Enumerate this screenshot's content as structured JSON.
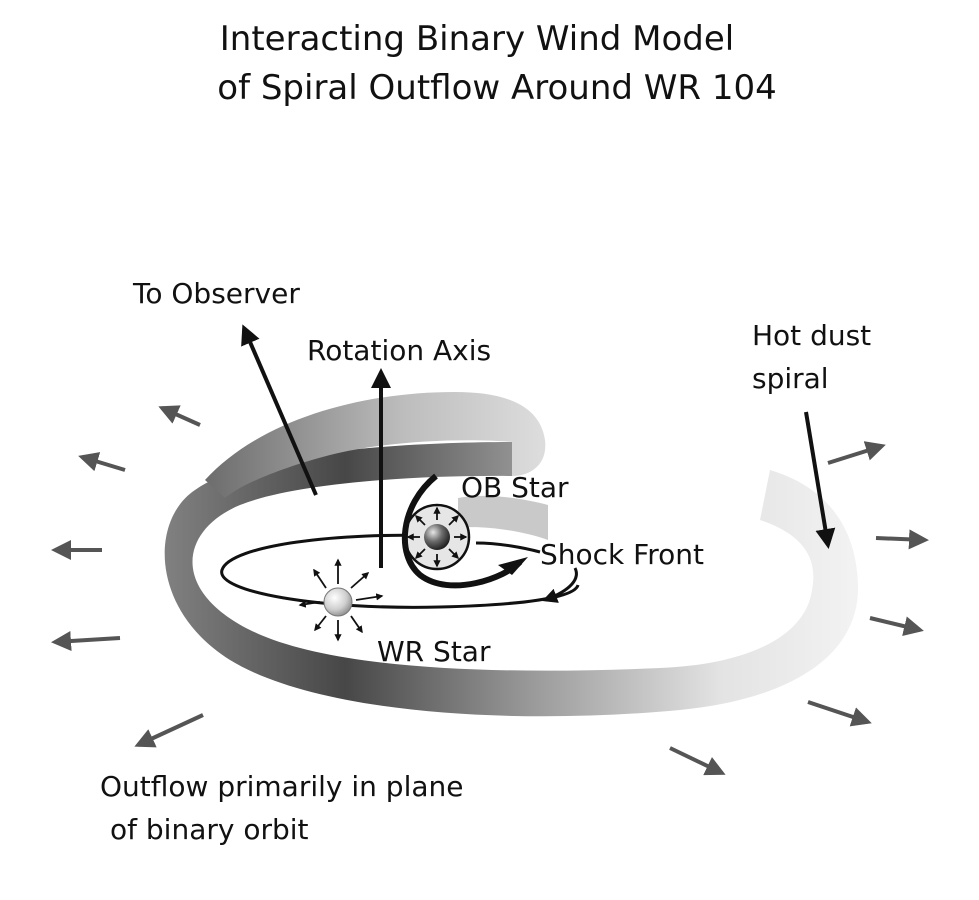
{
  "title": {
    "line1": "Interacting Binary Wind Model",
    "line2": "of Spiral Outflow Around WR 104"
  },
  "labels": {
    "to_observer": "To Observer",
    "rotation_axis": "Rotation Axis",
    "hot_dust_line1": "Hot dust",
    "hot_dust_line2": "spiral",
    "ob_star": "OB Star",
    "shock_front": "Shock Front",
    "wr_star": "WR Star",
    "outflow_line1": "Outflow primarily in plane",
    "outflow_line2": "of binary orbit"
  },
  "colors": {
    "spiral_dark": "#454545",
    "spiral_mid": "#8a8a8a",
    "spiral_light": "#f2f2f2",
    "arrow_gray": "#555555",
    "ink": "#111111"
  }
}
